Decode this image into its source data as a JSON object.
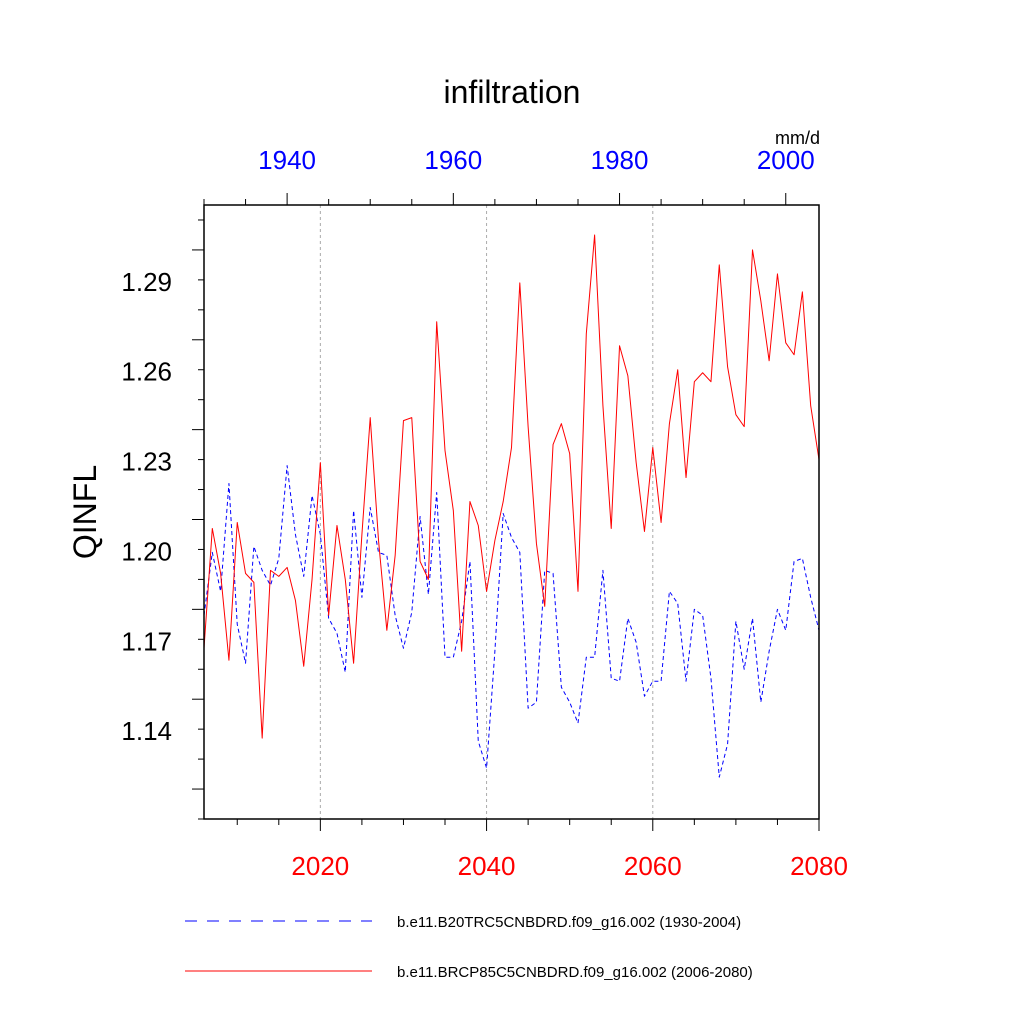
{
  "chart_data": {
    "type": "line",
    "title": "infiltration",
    "ylabel": "QINFL",
    "units": "mm/d",
    "ylim": [
      1.11,
      1.315
    ],
    "yticks": [
      "1.14",
      "1.17",
      "1.20",
      "1.23",
      "1.26",
      "1.29"
    ],
    "x_bottom": {
      "range": [
        2006,
        2080
      ],
      "ticks": [
        "2020",
        "2040",
        "2060",
        "2080"
      ],
      "color": "#ff0000"
    },
    "x_top": {
      "range": [
        1930,
        2004
      ],
      "ticks": [
        "1940",
        "1960",
        "1980",
        "2000"
      ],
      "color": "#0000ff"
    },
    "vertical_gridlines_bottom_years": [
      2020,
      2040,
      2060
    ],
    "series": [
      {
        "name": "b.e11.B20TRC5CNBDRD.f09_g16.002 (1930-2004)",
        "color": "#0000ff",
        "dash": "dashed",
        "axis": "top",
        "x": [
          1930,
          1931,
          1932,
          1933,
          1934,
          1935,
          1936,
          1937,
          1938,
          1939,
          1940,
          1941,
          1942,
          1943,
          1944,
          1945,
          1946,
          1947,
          1948,
          1949,
          1950,
          1951,
          1952,
          1953,
          1954,
          1955,
          1956,
          1957,
          1958,
          1959,
          1960,
          1961,
          1962,
          1963,
          1964,
          1965,
          1966,
          1967,
          1968,
          1969,
          1970,
          1971,
          1972,
          1973,
          1974,
          1975,
          1976,
          1977,
          1978,
          1979,
          1980,
          1981,
          1982,
          1983,
          1984,
          1985,
          1986,
          1987,
          1988,
          1989,
          1990,
          1991,
          1992,
          1993,
          1994,
          1995,
          1996,
          1997,
          1998,
          1999,
          2000,
          2001,
          2002,
          2003,
          2004
        ],
        "values": [
          1.178,
          1.199,
          1.186,
          1.222,
          1.175,
          1.162,
          1.201,
          1.193,
          1.188,
          1.197,
          1.228,
          1.205,
          1.191,
          1.218,
          1.205,
          1.177,
          1.172,
          1.159,
          1.213,
          1.184,
          1.214,
          1.199,
          1.198,
          1.178,
          1.167,
          1.179,
          1.211,
          1.185,
          1.219,
          1.164,
          1.164,
          1.176,
          1.196,
          1.136,
          1.127,
          1.166,
          1.212,
          1.204,
          1.199,
          1.147,
          1.149,
          1.193,
          1.192,
          1.154,
          1.149,
          1.142,
          1.164,
          1.164,
          1.193,
          1.157,
          1.156,
          1.177,
          1.169,
          1.151,
          1.156,
          1.156,
          1.186,
          1.182,
          1.156,
          1.18,
          1.178,
          1.157,
          1.124,
          1.135,
          1.176,
          1.16,
          1.177,
          1.149,
          1.166,
          1.18,
          1.173,
          1.196,
          1.197,
          1.184,
          1.173
        ]
      },
      {
        "name": "b.e11.BRCP85C5CNBDRD.f09_g16.002 (2006-2080)",
        "color": "#ff0000",
        "dash": "solid",
        "axis": "bottom",
        "x": [
          2006,
          2007,
          2008,
          2009,
          2010,
          2011,
          2012,
          2013,
          2014,
          2015,
          2016,
          2017,
          2018,
          2019,
          2020,
          2021,
          2022,
          2023,
          2024,
          2025,
          2026,
          2027,
          2028,
          2029,
          2030,
          2031,
          2032,
          2033,
          2034,
          2035,
          2036,
          2037,
          2038,
          2039,
          2040,
          2041,
          2042,
          2043,
          2044,
          2045,
          2046,
          2047,
          2048,
          2049,
          2050,
          2051,
          2052,
          2053,
          2054,
          2055,
          2056,
          2057,
          2058,
          2059,
          2060,
          2061,
          2062,
          2063,
          2064,
          2065,
          2066,
          2067,
          2068,
          2069,
          2070,
          2071,
          2072,
          2073,
          2074,
          2075,
          2076,
          2077,
          2078,
          2079,
          2080
        ],
        "values": [
          1.167,
          1.207,
          1.192,
          1.163,
          1.209,
          1.192,
          1.189,
          1.137,
          1.193,
          1.191,
          1.194,
          1.183,
          1.161,
          1.19,
          1.229,
          1.178,
          1.208,
          1.19,
          1.162,
          1.205,
          1.244,
          1.203,
          1.173,
          1.198,
          1.243,
          1.244,
          1.196,
          1.19,
          1.276,
          1.233,
          1.213,
          1.166,
          1.216,
          1.208,
          1.186,
          1.203,
          1.216,
          1.234,
          1.289,
          1.241,
          1.202,
          1.181,
          1.235,
          1.242,
          1.232,
          1.186,
          1.272,
          1.305,
          1.248,
          1.207,
          1.268,
          1.258,
          1.229,
          1.206,
          1.234,
          1.209,
          1.242,
          1.26,
          1.224,
          1.256,
          1.259,
          1.256,
          1.295,
          1.261,
          1.245,
          1.241,
          1.3,
          1.283,
          1.263,
          1.292,
          1.269,
          1.265,
          1.286,
          1.248,
          1.23
        ]
      }
    ]
  }
}
